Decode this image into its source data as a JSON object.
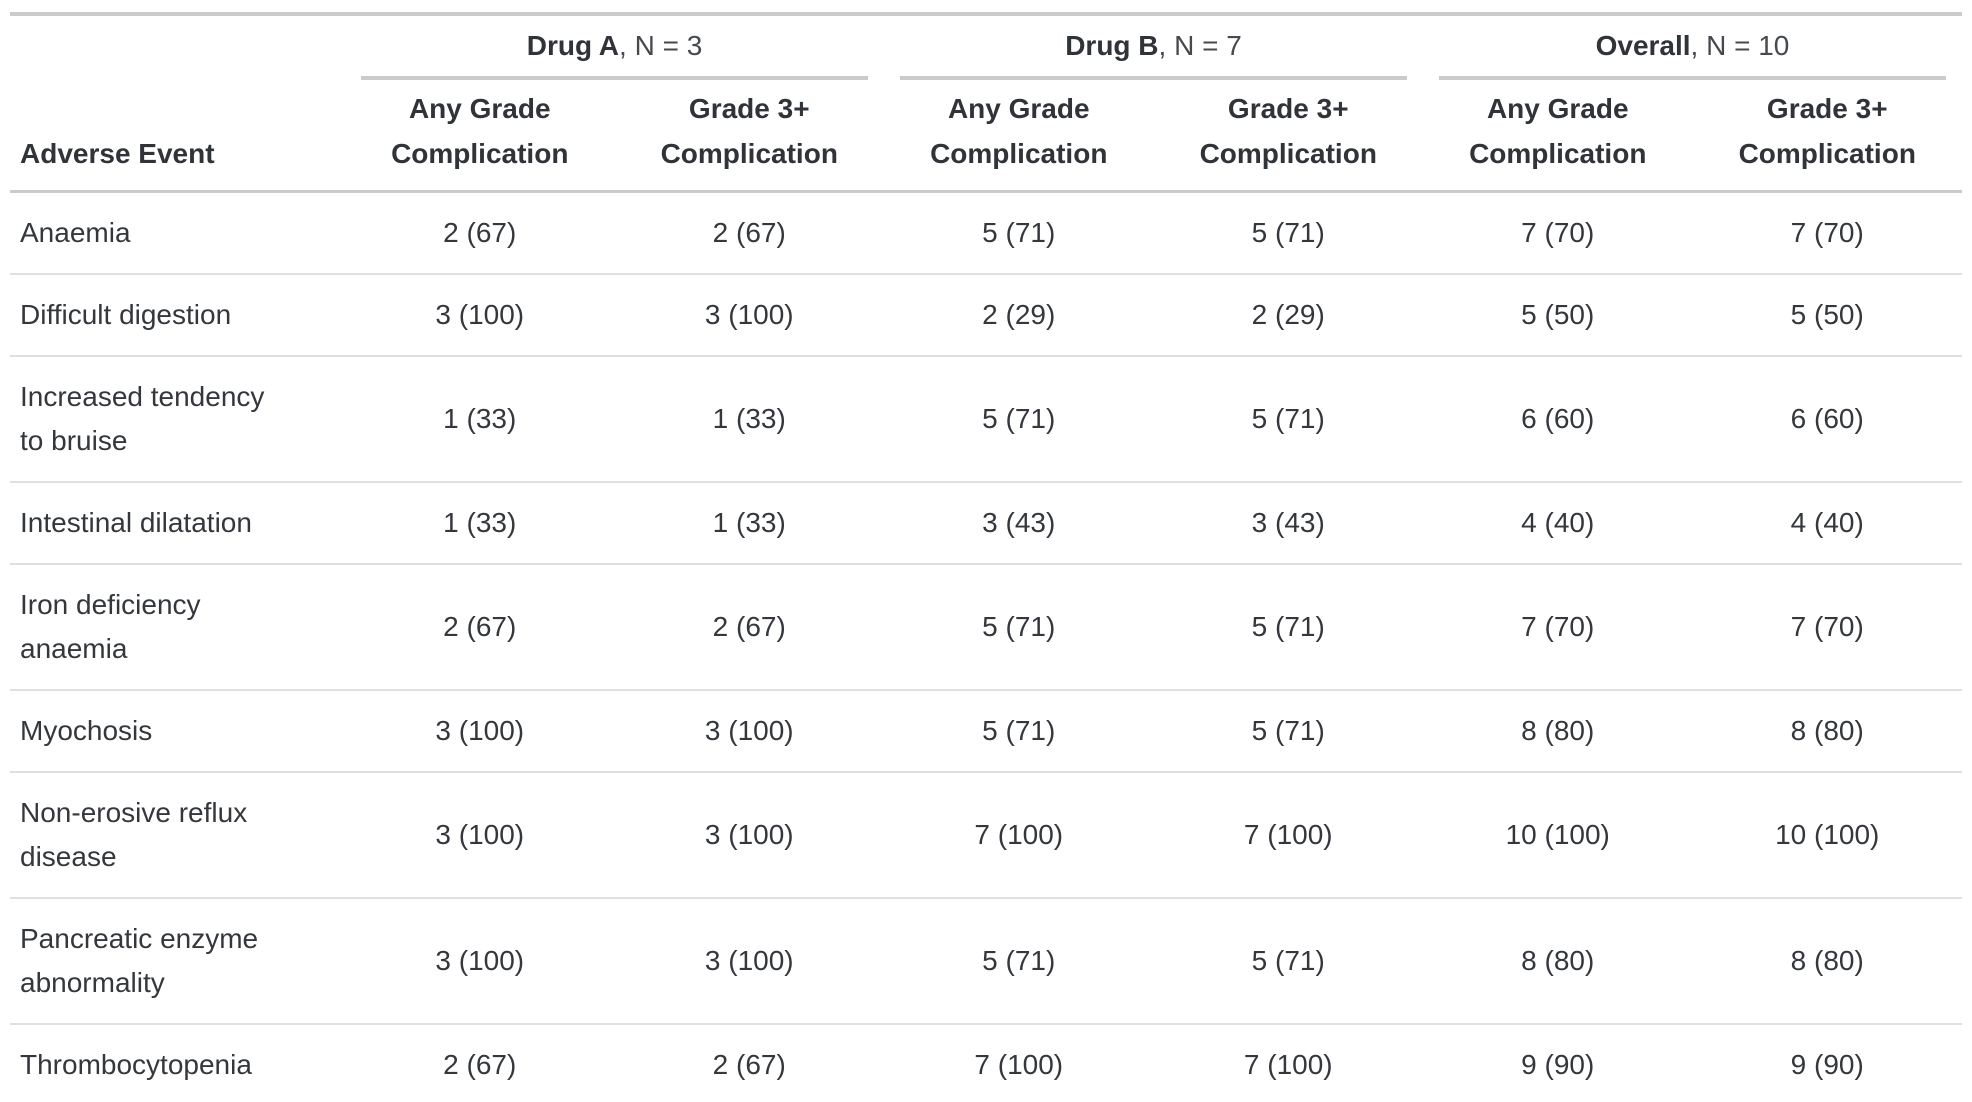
{
  "table": {
    "stub_header": "Adverse Event",
    "spanners": [
      {
        "name": "Drug A",
        "rest": ", N = 3"
      },
      {
        "name": "Drug B",
        "rest": ", N = 7"
      },
      {
        "name": "Overall",
        "rest": ", N = 10"
      }
    ],
    "col_headers": {
      "any_grade": "Any Grade\nComplication",
      "grade3": "Grade 3+\nComplication"
    },
    "rows": [
      {
        "label": "Anaemia",
        "values": [
          "2 (67)",
          "2 (67)",
          "5 (71)",
          "5 (71)",
          "7 (70)",
          "7 (70)"
        ]
      },
      {
        "label": "Difficult digestion",
        "values": [
          "3 (100)",
          "3 (100)",
          "2 (29)",
          "2 (29)",
          "5 (50)",
          "5 (50)"
        ]
      },
      {
        "label": "Increased tendency\nto bruise",
        "values": [
          "1 (33)",
          "1 (33)",
          "5 (71)",
          "5 (71)",
          "6 (60)",
          "6 (60)"
        ]
      },
      {
        "label": "Intestinal dilatation",
        "values": [
          "1 (33)",
          "1 (33)",
          "3 (43)",
          "3 (43)",
          "4 (40)",
          "4 (40)"
        ]
      },
      {
        "label": "Iron deficiency\nanaemia",
        "values": [
          "2 (67)",
          "2 (67)",
          "5 (71)",
          "5 (71)",
          "7 (70)",
          "7 (70)"
        ]
      },
      {
        "label": "Myochosis",
        "values": [
          "3 (100)",
          "3 (100)",
          "5 (71)",
          "5 (71)",
          "8 (80)",
          "8 (80)"
        ]
      },
      {
        "label": "Non-erosive reflux\ndisease",
        "values": [
          "3 (100)",
          "3 (100)",
          "7 (100)",
          "7 (100)",
          "10 (100)",
          "10 (100)"
        ]
      },
      {
        "label": "Pancreatic enzyme\nabnormality",
        "values": [
          "3 (100)",
          "3 (100)",
          "5 (71)",
          "5 (71)",
          "8 (80)",
          "8 (80)"
        ]
      },
      {
        "label": "Thrombocytopenia",
        "values": [
          "2 (67)",
          "2 (67)",
          "7 (100)",
          "7 (100)",
          "9 (90)",
          "9 (90)"
        ]
      }
    ],
    "colors": {
      "text": "#34373c",
      "rule_heavy": "#cbcbcb",
      "rule_light": "#e0e0e0",
      "background": "#ffffff"
    }
  },
  "chart_data": {
    "type": "table",
    "title": "",
    "column_groups": [
      "Drug A, N = 3",
      "Drug B, N = 7",
      "Overall, N = 10"
    ],
    "columns": [
      "Adverse Event",
      "Drug A Any Grade Complication",
      "Drug A Grade 3+ Complication",
      "Drug B Any Grade Complication",
      "Drug B Grade 3+ Complication",
      "Overall Any Grade Complication",
      "Overall Grade 3+ Complication"
    ],
    "rows": [
      [
        "Anaemia",
        "2 (67)",
        "2 (67)",
        "5 (71)",
        "5 (71)",
        "7 (70)",
        "7 (70)"
      ],
      [
        "Difficult digestion",
        "3 (100)",
        "3 (100)",
        "2 (29)",
        "2 (29)",
        "5 (50)",
        "5 (50)"
      ],
      [
        "Increased tendency to bruise",
        "1 (33)",
        "1 (33)",
        "5 (71)",
        "5 (71)",
        "6 (60)",
        "6 (60)"
      ],
      [
        "Intestinal dilatation",
        "1 (33)",
        "1 (33)",
        "3 (43)",
        "3 (43)",
        "4 (40)",
        "4 (40)"
      ],
      [
        "Iron deficiency anaemia",
        "2 (67)",
        "2 (67)",
        "5 (71)",
        "5 (71)",
        "7 (70)",
        "7 (70)"
      ],
      [
        "Myochosis",
        "3 (100)",
        "3 (100)",
        "5 (71)",
        "5 (71)",
        "8 (80)",
        "8 (80)"
      ],
      [
        "Non-erosive reflux disease",
        "3 (100)",
        "3 (100)",
        "7 (100)",
        "7 (100)",
        "10 (100)",
        "10 (100)"
      ],
      [
        "Pancreatic enzyme abnormality",
        "3 (100)",
        "3 (100)",
        "5 (71)",
        "5 (71)",
        "8 (80)",
        "8 (80)"
      ],
      [
        "Thrombocytopenia",
        "2 (67)",
        "2 (67)",
        "7 (100)",
        "7 (100)",
        "9 (90)",
        "9 (90)"
      ]
    ]
  }
}
